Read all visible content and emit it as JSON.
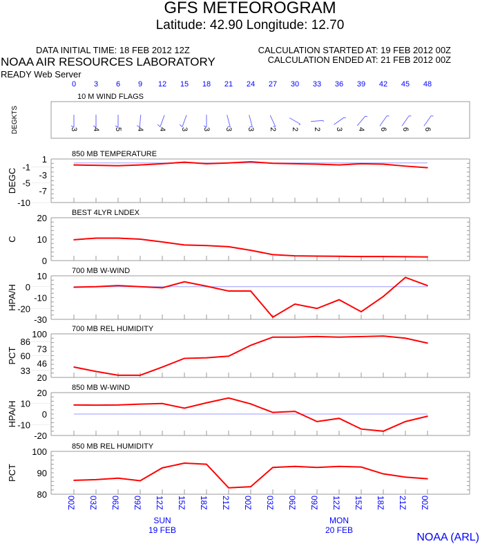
{
  "header": {
    "title": "GFS METEOROGRAM",
    "subtitle": "Latitude: 42.90 Longitude:  12.70",
    "initial_time": "DATA INITIAL TIME: 18 FEB 2012 12Z",
    "calc_started": "CALCULATION STARTED AT: 19 FEB 2012 00Z",
    "calc_ended": "CALCULATION ENDED AT: 21 FEB 2012 00Z",
    "org": "NOAA AIR RESOURCES LABORATORY",
    "server": "READY Web Server",
    "footer": "NOAA (ARL)"
  },
  "colors": {
    "series": "#ff0000",
    "reference": "#9999ff",
    "axis_text": "#0000ff",
    "frame": "#999999"
  },
  "hours": [
    "0",
    "3",
    "6",
    "9",
    "12",
    "15",
    "18",
    "21",
    "24",
    "27",
    "30",
    "33",
    "36",
    "39",
    "42",
    "45",
    "48"
  ],
  "time_labels": [
    "00Z",
    "03Z",
    "06Z",
    "09Z",
    "12Z",
    "15Z",
    "18Z",
    "21Z",
    "00Z",
    "03Z",
    "06Z",
    "09Z",
    "12Z",
    "15Z",
    "18Z",
    "21Z",
    "00Z"
  ],
  "day_labels": [
    {
      "day": "SUN",
      "date": "19 FEB",
      "at_hour": 12
    },
    {
      "day": "MON",
      "date": "20 FEB",
      "at_hour": 36
    }
  ],
  "chart_data": [
    {
      "type": "wind-barbs",
      "title": "10 M  WIND FLAGS",
      "ylabel": "DEGKTS",
      "speeds_kt": [
        3,
        4,
        5,
        4,
        4,
        3,
        3,
        3,
        3,
        2,
        2,
        2,
        3,
        4,
        6,
        6,
        6
      ],
      "directions_deg": [
        0,
        0,
        0,
        5,
        20,
        20,
        0,
        345,
        345,
        335,
        300,
        265,
        235,
        220,
        215,
        215,
        215
      ]
    },
    {
      "type": "line",
      "title": "850 MB  TEMPERATURE",
      "ylabel": "DEGC",
      "ylim": [
        -10,
        1
      ],
      "yticks": [
        1,
        -1,
        -3,
        -5,
        -7,
        -10
      ],
      "reference": 0,
      "values": [
        -0.5,
        -0.6,
        -0.7,
        -0.5,
        -0.2,
        0.2,
        -0.2,
        0,
        0.3,
        -0.1,
        -0.2,
        -0.3,
        -0.5,
        -0.2,
        -0.3,
        -0.8,
        -1.2
      ]
    },
    {
      "type": "line",
      "title": "BEST 4LYR LNDEX",
      "ylabel": "C",
      "ylim": [
        0,
        20
      ],
      "yticks": [
        20,
        10,
        0
      ],
      "values": [
        9.7,
        10.5,
        10.5,
        10,
        8.7,
        7.3,
        7,
        6.5,
        4.8,
        2.8,
        2.2,
        2.1,
        2,
        1.9,
        1.9,
        1.8,
        1.7
      ]
    },
    {
      "type": "line",
      "title": "700 MB  W-WIND",
      "ylabel": "HPA/H",
      "ylim": [
        -30,
        10
      ],
      "yticks": [
        10,
        0,
        -10,
        -20,
        -30
      ],
      "reference": 0,
      "values": [
        -0.5,
        0,
        1,
        0,
        -1,
        4.5,
        0.5,
        -4,
        -4,
        -28,
        -16,
        -20,
        -12,
        -23,
        -9,
        8.5,
        1
      ]
    },
    {
      "type": "line",
      "title": "700 MB  REL HUMIDITY",
      "ylabel": "PCT",
      "ylim": [
        20,
        100
      ],
      "yticks": [
        100,
        86,
        73,
        60,
        46,
        33,
        20
      ],
      "values": [
        39,
        31,
        24,
        24,
        39,
        55,
        56,
        59,
        79,
        94,
        94,
        95,
        94,
        95,
        96,
        92,
        83
      ]
    },
    {
      "type": "line",
      "title": "850 MB  W-WIND",
      "ylabel": "HPA/H",
      "ylim": [
        -20,
        20
      ],
      "yticks": [
        20,
        10,
        0,
        -10,
        -20
      ],
      "reference": 0,
      "values": [
        8.5,
        8.3,
        8.5,
        9.3,
        9.8,
        5.5,
        10.5,
        15,
        9.5,
        1.5,
        2.5,
        -7,
        -4,
        -14,
        -16,
        -7,
        -2
      ]
    },
    {
      "type": "line",
      "title": "850 MB  REL HUMIDITY",
      "ylabel": "PCT",
      "ylim": [
        80,
        100
      ],
      "yticks": [
        100,
        90,
        80
      ],
      "values": [
        86.5,
        86.8,
        87.5,
        86.3,
        92.3,
        94.5,
        94,
        83,
        83.5,
        92.5,
        93,
        92.5,
        93,
        92.7,
        89.5,
        88,
        87.2
      ]
    }
  ]
}
